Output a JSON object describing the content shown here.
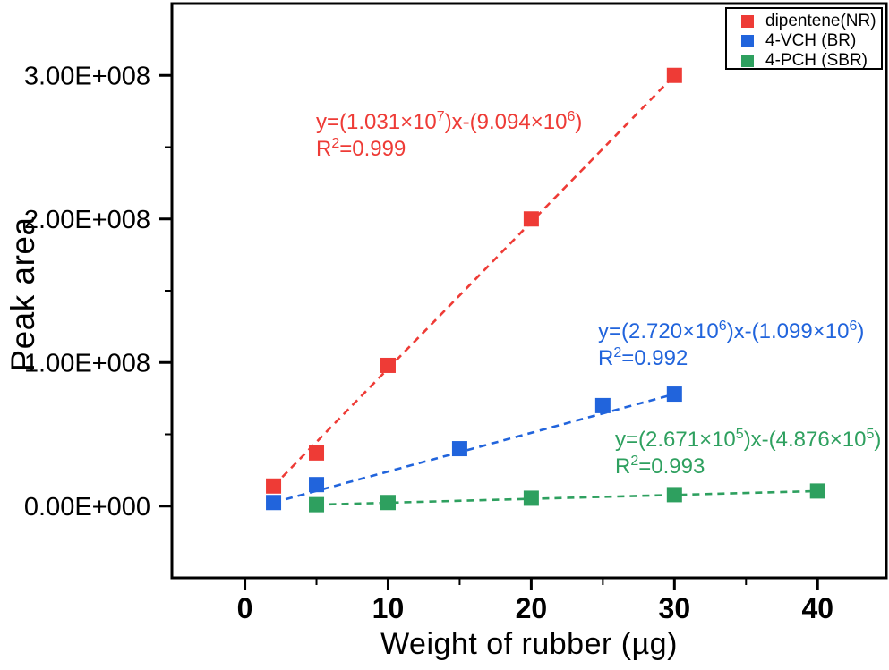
{
  "chart_data": {
    "type": "scatter",
    "title": "",
    "xlabel": "Weight of rubber (µg)",
    "ylabel": "Peak area",
    "xlim": [
      -5.1,
      44.8
    ],
    "ylim": [
      -50000000,
      350000000
    ],
    "x_major_ticks": [
      0,
      10,
      20,
      30,
      40
    ],
    "x_minor_ticks": [
      5,
      15,
      25,
      35
    ],
    "y_major_ticks": [
      0,
      100000000,
      200000000,
      300000000
    ],
    "y_major_tick_labels": [
      "0.00E+000",
      "1.00E+008",
      "2.00E+008",
      "3.00E+008"
    ],
    "y_minor_ticks": [
      50000000,
      150000000,
      250000000
    ],
    "grid": false,
    "legend_position": "top-right",
    "series": [
      {
        "name": "dipentene(NR)",
        "color": "#ee3b36",
        "marker": "square",
        "line_style": "dashed",
        "x": [
          2,
          5,
          10,
          20,
          30
        ],
        "y": [
          14000000,
          37000000,
          98000000,
          200000000,
          300000000
        ],
        "eq": {
          "base1": "y=(1.031×10",
          "exp1": "7",
          "base2": ")x-(9.094×10",
          "exp2": "6",
          "base3": ")",
          "r_base": "R",
          "r_exp": "2",
          "r_val": "=0.999"
        }
      },
      {
        "name": "4-VCH (BR)",
        "color": "#2164dc",
        "marker": "square",
        "line_style": "dashed",
        "x": [
          2,
          5,
          15,
          25,
          30
        ],
        "y": [
          2500000,
          15000000,
          40000000,
          70000000,
          78000000
        ],
        "eq": {
          "base1": "y=(2.720×10",
          "exp1": "6",
          "base2": ")x-(1.099×10",
          "exp2": "6",
          "base3": ")",
          "r_base": "R",
          "r_exp": "2",
          "r_val": "=0.992"
        }
      },
      {
        "name": "4-PCH (SBR)",
        "color": "#2ea05f",
        "marker": "square",
        "line_style": "dashed",
        "x": [
          5,
          10,
          20,
          30,
          40
        ],
        "y": [
          1000000,
          2500000,
          5500000,
          8000000,
          10500000
        ],
        "eq": {
          "base1": "y=(2.671×10",
          "exp1": "5",
          "base2": ")x-(4.876×10",
          "exp2": "5",
          "base3": ")",
          "r_base": "R",
          "r_exp": "2",
          "r_val": "=0.993"
        }
      }
    ]
  }
}
